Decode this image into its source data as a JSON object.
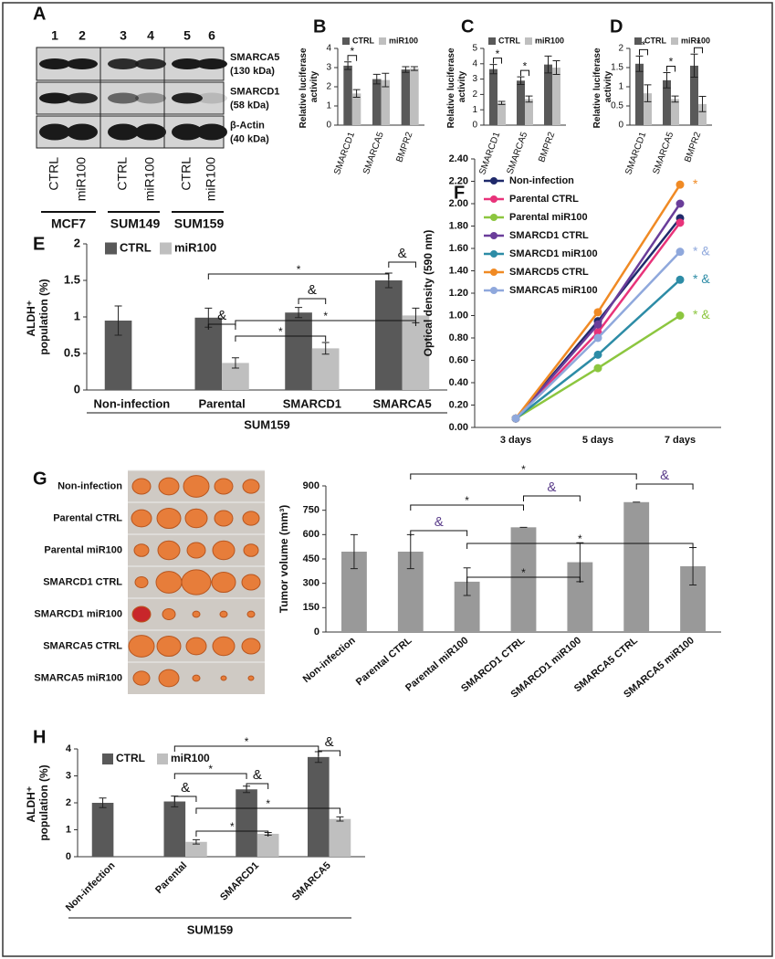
{
  "blot": {
    "panel": "A",
    "lanes": [
      "1",
      "2",
      "3",
      "4",
      "5",
      "6"
    ],
    "proteins": [
      {
        "name": "SMARCA5",
        "size": "(130 kDa)"
      },
      {
        "name": "SMARCD1",
        "size": "(58 kDa)"
      },
      {
        "name": "β-Actin",
        "size": "(40 kDa)"
      }
    ],
    "conditions": [
      "CTRL",
      "miR100",
      "CTRL",
      "miR100",
      "CTRL",
      "miR100"
    ],
    "cell_lines": [
      "MCF7",
      "SUM149",
      "SUM159"
    ]
  },
  "tumor_photos": {
    "rows": [
      "Non-infection",
      "Parental CTRL",
      "Parental miR100",
      "SMARCD1 CTRL",
      "SMARCD1 miR100",
      "SMARCA5 CTRL",
      "SMARCA5 miR100"
    ]
  },
  "chart_data": [
    {
      "type": "bar",
      "panel": "B",
      "y_label": "Relative luciferase activity",
      "categories": [
        "SMARCD1",
        "SMARCA5",
        "BMPR2"
      ],
      "series": [
        {
          "name": "CTRL",
          "color": "#595959",
          "values": [
            3.1,
            2.4,
            2.9
          ],
          "errors": [
            0.2,
            0.25,
            0.15
          ]
        },
        {
          "name": "miR100",
          "color": "#bfbfbf",
          "values": [
            1.65,
            2.35,
            2.95
          ],
          "errors": [
            0.2,
            0.35,
            0.1
          ]
        }
      ],
      "ylim": [
        0,
        4
      ],
      "yticks": [
        0,
        1,
        2,
        3,
        4
      ],
      "annotations": [
        "*"
      ]
    },
    {
      "type": "bar",
      "panel": "C",
      "y_label": "Relative luciferase activity",
      "categories": [
        "SMARCD1",
        "SMARCA5",
        "BMPR2"
      ],
      "series": [
        {
          "name": "CTRL",
          "color": "#595959",
          "values": [
            3.65,
            2.9,
            3.95
          ],
          "errors": [
            0.3,
            0.25,
            0.55
          ]
        },
        {
          "name": "miR100",
          "color": "#bfbfbf",
          "values": [
            1.45,
            1.7,
            3.75
          ],
          "errors": [
            0.1,
            0.2,
            0.45
          ]
        }
      ],
      "ylim": [
        0,
        5
      ],
      "yticks": [
        0,
        1,
        2,
        3,
        4,
        5
      ],
      "annotations": [
        "*",
        "*"
      ]
    },
    {
      "type": "bar",
      "panel": "D",
      "y_label": "Relative luciferase activity",
      "categories": [
        "SMARCD1",
        "SMARCA5",
        "BMPR2"
      ],
      "series": [
        {
          "name": "CTRL",
          "color": "#595959",
          "values": [
            1.6,
            1.17,
            1.55
          ],
          "errors": [
            0.2,
            0.2,
            0.3
          ]
        },
        {
          "name": "miR100",
          "color": "#bfbfbf",
          "values": [
            0.83,
            0.68,
            0.55
          ],
          "errors": [
            0.22,
            0.08,
            0.2
          ]
        }
      ],
      "ylim": [
        0,
        2
      ],
      "yticks": [
        0,
        0.5,
        1,
        1.5,
        2
      ],
      "annotations": [
        "*",
        "*",
        "*"
      ]
    },
    {
      "type": "bar",
      "panel": "E",
      "y_label": "ALDH⁺ population (%)",
      "categories": [
        "Non-infection",
        "Parental",
        "SMARCD1",
        "SMARCA5"
      ],
      "group_label": "SUM159",
      "series": [
        {
          "name": "CTRL",
          "color": "#595959",
          "values": [
            0.95,
            0.99,
            1.06,
            1.5
          ],
          "errors": [
            0.2,
            0.13,
            0.07,
            0.1
          ]
        },
        {
          "name": "miR100",
          "color": "#bfbfbf",
          "values": [
            null,
            0.37,
            0.57,
            1.02
          ],
          "errors": [
            null,
            0.07,
            0.08,
            0.1
          ]
        }
      ],
      "ylim": [
        0,
        2
      ],
      "yticks": [
        0,
        0.5,
        1,
        1.5,
        2
      ],
      "annotations": [
        "&",
        "&",
        "&",
        "*",
        "*",
        "*"
      ]
    },
    {
      "type": "line",
      "panel": "F",
      "y_label": "Optical density (590 nm)",
      "categories": [
        "3 days",
        "5 days",
        "7 days"
      ],
      "series": [
        {
          "name": "Non-infection",
          "color": "#1f2a6b",
          "values": [
            0.08,
            0.95,
            1.87
          ]
        },
        {
          "name": "Parental CTRL",
          "color": "#e8337a",
          "values": [
            0.08,
            0.85,
            1.83
          ]
        },
        {
          "name": "Parental miR100",
          "color": "#8cc63f",
          "values": [
            0.08,
            0.53,
            1.0
          ]
        },
        {
          "name": "SMARCD1 CTRL",
          "color": "#6a3d9a",
          "values": [
            0.08,
            0.92,
            2.0
          ]
        },
        {
          "name": "SMARCD1 miR100",
          "color": "#2d8ca6",
          "values": [
            0.08,
            0.65,
            1.32
          ]
        },
        {
          "name": "SMARCD5 CTRL",
          "color": "#f08a24",
          "values": [
            0.08,
            1.03,
            2.17
          ]
        },
        {
          "name": "SMARCA5 miR100",
          "color": "#8fa8dc",
          "values": [
            0.08,
            0.8,
            1.57
          ]
        }
      ],
      "ylim": [
        0,
        2.4
      ],
      "yticks": [
        {
          "value": 0,
          "label": "0.00"
        },
        {
          "value": 0.2,
          "label": "0.20"
        },
        {
          "value": 0.4,
          "label": "0.40"
        },
        {
          "value": 0.6,
          "label": "0.60"
        },
        {
          "value": 0.8,
          "label": "0.80"
        },
        {
          "value": 1,
          "label": "1.00"
        },
        {
          "value": 1.2,
          "label": "1.20"
        },
        {
          "value": 1.4,
          "label": "1.40"
        },
        {
          "value": 1.6,
          "label": "1.60"
        },
        {
          "value": 1.8,
          "label": "1.80"
        },
        {
          "value": 2,
          "label": "2.00"
        },
        {
          "value": 2.2,
          "label": "2.20"
        },
        {
          "value": 2.4,
          "label": "2.40"
        }
      ],
      "annotations": [
        {
          "text": "*",
          "color": "#f08a24"
        },
        {
          "text": "* &",
          "color": "#8fa8dc"
        },
        {
          "text": "* &",
          "color": "#2d8ca6"
        },
        {
          "text": "* &",
          "color": "#8cc63f"
        }
      ]
    },
    {
      "type": "bar",
      "panel": "G",
      "y_label": "Tumor volume (mm³)",
      "categories": [
        "Non-infection",
        "Parental CTRL",
        "Parental miR100",
        "SMARCD1 CTRL",
        "SMARCD1 miR100",
        "SMARCA5 CTRL",
        "SMARCA5 miR100"
      ],
      "color": "#999999",
      "values": [
        495,
        495,
        310,
        645,
        430,
        800,
        405
      ],
      "errors": [
        105,
        105,
        85,
        0,
        120,
        0,
        115
      ],
      "ylim": [
        0,
        900
      ],
      "yticks": [
        0,
        150,
        300,
        450,
        600,
        750,
        900
      ],
      "annotations": [
        "*",
        "&",
        "&",
        "*",
        "&",
        "*",
        "*"
      ]
    },
    {
      "type": "bar",
      "panel": "H",
      "y_label": "ALDH⁺ population (%)",
      "categories": [
        "Non-infection",
        "Parental",
        "SMARCD1",
        "SMARCA5"
      ],
      "group_label": "SUM159",
      "series": [
        {
          "name": "CTRL",
          "color": "#595959",
          "values": [
            2.0,
            2.05,
            2.5,
            3.7
          ],
          "errors": [
            0.18,
            0.2,
            0.12,
            0.2
          ]
        },
        {
          "name": "miR100",
          "color": "#bfbfbf",
          "values": [
            null,
            0.55,
            0.85,
            1.4
          ],
          "errors": [
            null,
            0.08,
            0.05,
            0.08
          ]
        }
      ],
      "ylim": [
        0,
        4
      ],
      "yticks": [
        0,
        1,
        2,
        3,
        4
      ],
      "annotations": [
        "*",
        "&",
        "&",
        "*",
        "&",
        "*",
        "*"
      ]
    }
  ]
}
